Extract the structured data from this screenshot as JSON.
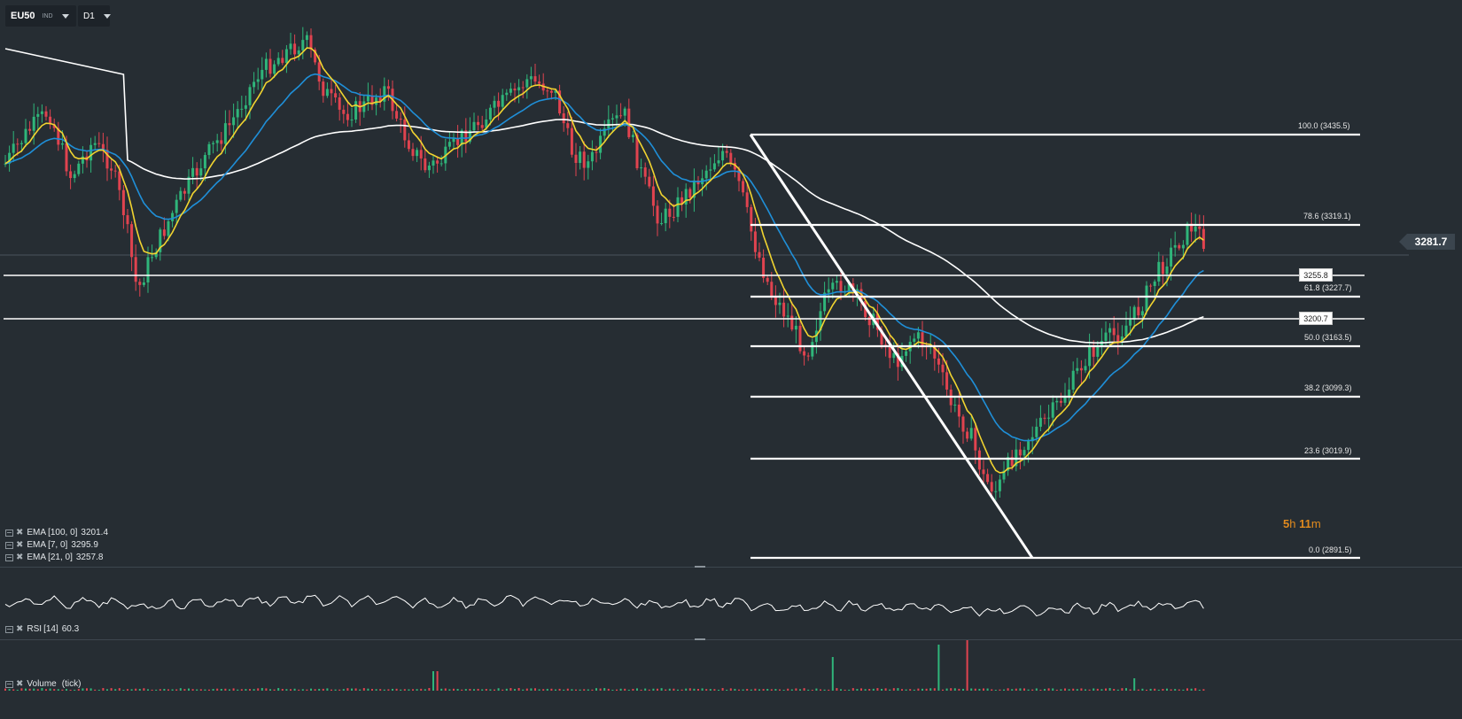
{
  "toolbar": {
    "symbol": "EU50",
    "symbol_type": "IND",
    "timeframe": "D1"
  },
  "main_pane": {
    "current_price": "3281.7",
    "countdown_hours": "5",
    "countdown_h": "h",
    "countdown_minutes": "11",
    "countdown_m": "m",
    "horizontal_levels": [
      {
        "label": "3255.8"
      },
      {
        "label": "3200.7"
      }
    ],
    "fibonacci": [
      {
        "label": "100.0 (3435.5)"
      },
      {
        "label": "78.6 (3319.1)"
      },
      {
        "label": "61.8 (3227.7)"
      },
      {
        "label": "50.0 (3163.5)"
      },
      {
        "label": "38.2 (3099.3)"
      },
      {
        "label": "23.6 (3019.9)"
      },
      {
        "label": "0.0 (2891.5)"
      }
    ],
    "indicators": [
      {
        "name": "EMA",
        "params": "[100,  0]",
        "value": "3201.4",
        "color": "#ffffff"
      },
      {
        "name": "EMA",
        "params": "[7,  0]",
        "value": "3295.9",
        "color": "#f1d430"
      },
      {
        "name": "EMA",
        "params": "[21,  0]",
        "value": "3257.8",
        "color": "#1f8fd8"
      }
    ]
  },
  "rsi_pane": {
    "name": "RSI",
    "params": "[14]",
    "value": "60.3"
  },
  "volume_pane": {
    "name": "Volume",
    "params": "(tick)"
  },
  "colors": {
    "background": "#262d33",
    "bull_candle": "#2fb57a",
    "bear_candle": "#e0434f",
    "ema_fast": "#f1d430",
    "ema_mid": "#1f8fd8",
    "ema_slow": "#ffffff",
    "fib_lines": "#ffffff",
    "countdown": "#e08a1e"
  }
}
